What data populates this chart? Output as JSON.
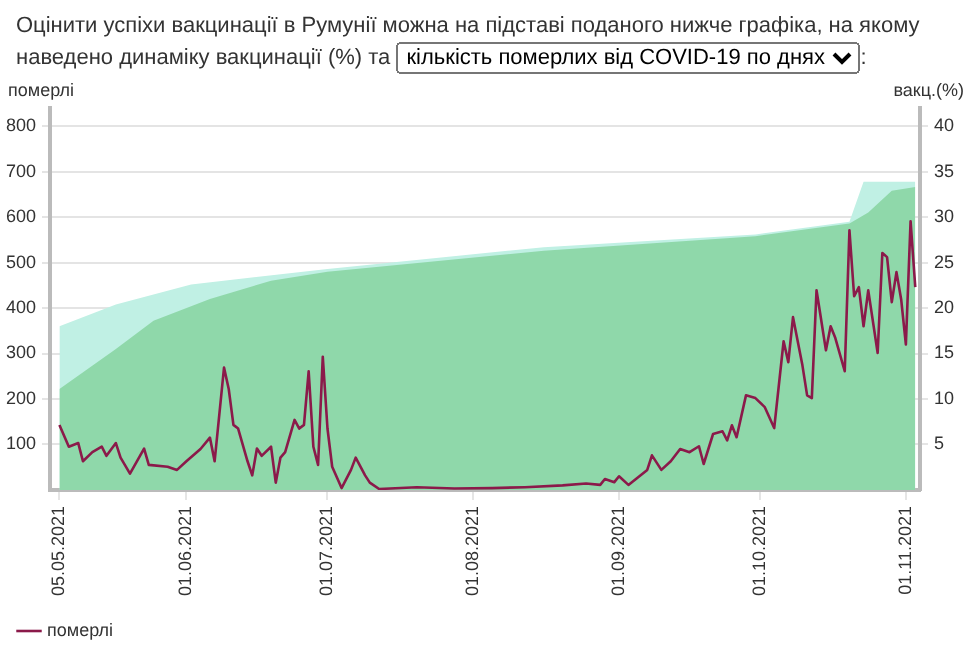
{
  "chart_data": {
    "type": "line",
    "title": "Оцінити успіхи вакцинації в Румунії можна на підставі поданого нижче графіка, на якому наведено динаміку вакцинації (%) та",
    "subtitle": "кількість померлих від COVID-19 по днях",
    "annotations": [
      ":"
    ],
    "ylabel": "померлі",
    "y2label": "вакц.(%)",
    "xlim": [
      "2021-05-03",
      "2021-11-04"
    ],
    "xticks": [
      {
        "value": "2021-05-05",
        "label": "05.05.2021"
      },
      {
        "value": "2021-06-01",
        "label": "01.06.2021"
      },
      {
        "value": "2021-07-01",
        "label": "01.07.2021"
      },
      {
        "value": "2021-08-01",
        "label": "01.08.2021"
      },
      {
        "value": "2021-09-01",
        "label": "01.09.2021"
      },
      {
        "value": "2021-10-01",
        "label": "01.10.2021"
      },
      {
        "value": "2021-11-01",
        "label": "01.11.2021"
      }
    ],
    "ylim": [
      0,
      840
    ],
    "yticks": [
      100,
      200,
      300,
      400,
      500,
      600,
      700,
      800
    ],
    "y2lim": [
      0,
      42
    ],
    "y2ticks": [
      5,
      10,
      15,
      20,
      25,
      30,
      35,
      40
    ],
    "grid": "y",
    "legend": "bottom left",
    "marker": "none",
    "line_style": "solid",
    "series": [
      {
        "name": "померлі",
        "type": "line",
        "color": "#8b1a4a",
        "x": [
          "2021-05-05",
          "2021-05-07",
          "2021-05-09",
          "2021-05-10",
          "2021-05-12",
          "2021-05-14",
          "2021-05-15",
          "2021-05-17",
          "2021-05-18",
          "2021-05-20",
          "2021-05-23",
          "2021-05-24",
          "2021-05-28",
          "2021-05-30",
          "2021-06-01",
          "2021-06-04",
          "2021-06-06",
          "2021-06-07",
          "2021-06-09",
          "2021-06-10",
          "2021-06-11",
          "2021-06-12",
          "2021-06-14",
          "2021-06-15",
          "2021-06-16",
          "2021-06-17",
          "2021-06-19",
          "2021-06-20",
          "2021-06-21",
          "2021-06-22",
          "2021-06-24",
          "2021-06-25",
          "2021-06-26",
          "2021-06-27",
          "2021-06-28",
          "2021-06-29",
          "2021-06-30",
          "2021-07-01",
          "2021-07-02",
          "2021-07-04",
          "2021-07-06",
          "2021-07-07",
          "2021-07-09",
          "2021-07-10",
          "2021-07-12",
          "2021-07-20",
          "2021-07-28",
          "2021-08-05",
          "2021-08-12",
          "2021-08-20",
          "2021-08-25",
          "2021-08-28",
          "2021-08-29",
          "2021-08-31",
          "2021-09-01",
          "2021-09-03",
          "2021-09-07",
          "2021-09-08",
          "2021-09-10",
          "2021-09-12",
          "2021-09-14",
          "2021-09-16",
          "2021-09-18",
          "2021-09-19",
          "2021-09-21",
          "2021-09-23",
          "2021-09-24",
          "2021-09-25",
          "2021-09-26",
          "2021-09-28",
          "2021-09-30",
          "2021-10-02",
          "2021-10-04",
          "2021-10-06",
          "2021-10-07",
          "2021-10-08",
          "2021-10-10",
          "2021-10-11",
          "2021-10-12",
          "2021-10-13",
          "2021-10-14",
          "2021-10-15",
          "2021-10-16",
          "2021-10-17",
          "2021-10-19",
          "2021-10-20",
          "2021-10-21",
          "2021-10-22",
          "2021-10-23",
          "2021-10-24",
          "2021-10-26",
          "2021-10-27",
          "2021-10-28",
          "2021-10-29",
          "2021-10-30",
          "2021-10-31",
          "2021-11-01",
          "2021-11-02",
          "2021-11-03"
        ],
        "values": [
          143,
          95,
          103,
          63,
          83,
          95,
          75,
          103,
          71,
          36,
          91,
          55,
          51,
          44,
          63,
          90,
          115,
          63,
          269,
          222,
          143,
          135,
          63,
          32,
          91,
          75,
          95,
          16,
          71,
          83,
          154,
          135,
          143,
          261,
          95,
          55,
          293,
          135,
          51,
          4,
          44,
          71,
          32,
          16,
          2,
          6,
          3,
          4,
          6,
          10,
          14,
          11,
          24,
          17,
          30,
          11,
          44,
          76,
          44,
          63,
          90,
          83,
          96,
          57,
          123,
          129,
          109,
          142,
          116,
          208,
          202,
          182,
          136,
          327,
          281,
          380,
          274,
          208,
          202,
          439,
          373,
          307,
          360,
          334,
          261,
          571,
          426,
          446,
          360,
          439,
          301,
          521,
          512,
          413,
          479,
          419,
          320,
          591,
          446
        ]
      },
      {
        "type": "area",
        "axis": "y2",
        "color": "#8fd8aa",
        "x": [
          "2021-05-05",
          "2021-05-17",
          "2021-05-25",
          "2021-06-06",
          "2021-06-19",
          "2021-07-01",
          "2021-08-16",
          "2021-09-30",
          "2021-10-20",
          "2021-10-24",
          "2021-10-29",
          "2021-11-03"
        ],
        "values": [
          11.1,
          15.5,
          18.6,
          21,
          23,
          24,
          26.3,
          27.9,
          29.3,
          30.5,
          32.9,
          33.3
        ]
      },
      {
        "type": "area",
        "axis": "y2",
        "color": "#c0f0e4",
        "x": [
          "2021-05-05",
          "2021-05-17",
          "2021-06-02",
          "2021-07-01",
          "2021-08-16",
          "2021-09-30",
          "2021-10-20",
          "2021-10-23",
          "2021-11-03"
        ],
        "values": [
          18,
          20.4,
          22.6,
          24.3,
          26.7,
          28.1,
          29.5,
          33.9,
          33.9
        ]
      }
    ]
  }
}
